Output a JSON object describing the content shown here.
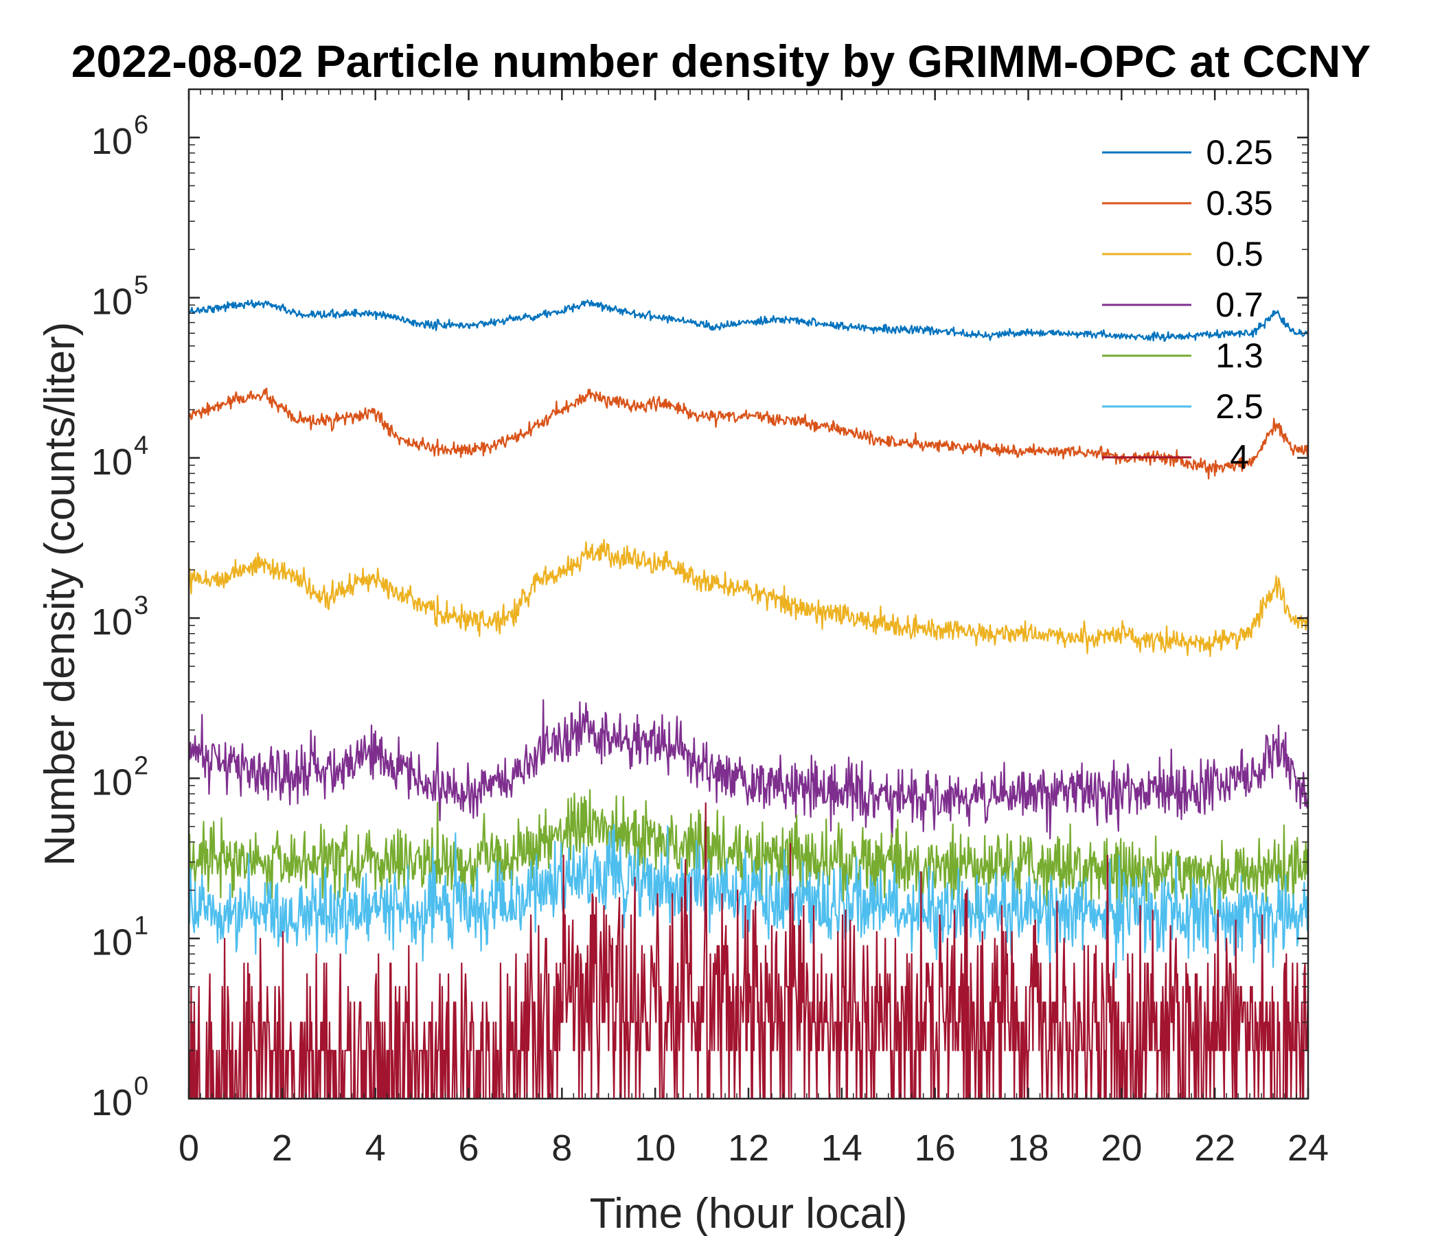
{
  "chart_data": {
    "type": "line",
    "title": "2022-08-02 Particle number density by GRIMM-OPC at CCNY",
    "xlabel": "Time (hour local)",
    "ylabel": "Number density (counts/liter)",
    "xlim": [
      0,
      24
    ],
    "ylim": [
      1,
      2000000
    ],
    "yscale": "log",
    "xticks": [
      "0",
      "2",
      "4",
      "6",
      "8",
      "10",
      "12",
      "14",
      "16",
      "18",
      "20",
      "22",
      "24"
    ],
    "yticks": [
      {
        "base": "10",
        "exp": "0"
      },
      {
        "base": "10",
        "exp": "1"
      },
      {
        "base": "10",
        "exp": "2"
      },
      {
        "base": "10",
        "exp": "3"
      },
      {
        "base": "10",
        "exp": "4"
      },
      {
        "base": "10",
        "exp": "5"
      },
      {
        "base": "10",
        "exp": "6"
      }
    ],
    "legend_location": "top-right",
    "series": [
      {
        "name": "0.25",
        "color": "#0072BD",
        "noise": 0.025,
        "x": [
          0,
          1,
          1.7,
          2.5,
          3.5,
          4.2,
          5,
          6,
          7,
          8,
          8.6,
          9.5,
          10.5,
          11.3,
          12,
          13,
          14,
          15,
          16,
          17,
          18,
          19,
          20,
          21,
          22,
          22.8,
          23.3,
          23.7,
          24
        ],
        "y": [
          82000,
          90000,
          92000,
          76000,
          80000,
          78000,
          68000,
          67000,
          74000,
          82000,
          93000,
          80000,
          73000,
          66000,
          70000,
          73000,
          66000,
          64000,
          62000,
          59000,
          60000,
          60000,
          57000,
          57000,
          59000,
          60000,
          80000,
          60000,
          60000
        ]
      },
      {
        "name": "0.35",
        "color": "#D95319",
        "noise": 0.04,
        "x": [
          0,
          1,
          1.6,
          2.3,
          3,
          4,
          4.5,
          5.2,
          6,
          7,
          8,
          8.6,
          9.5,
          10.2,
          11,
          12,
          13,
          14,
          15,
          16,
          17,
          18,
          19,
          20,
          21,
          22,
          22.8,
          23.3,
          23.7,
          24
        ],
        "y": [
          18000,
          23000,
          25000,
          17000,
          17000,
          19000,
          13000,
          11500,
          11000,
          13000,
          20000,
          25000,
          21000,
          22000,
          18000,
          18500,
          17000,
          15000,
          12500,
          12000,
          11500,
          11000,
          11000,
          10000,
          10000,
          8500,
          9500,
          16000,
          11000,
          11000
        ]
      },
      {
        "name": "0.5",
        "color": "#EDB120",
        "noise": 0.07,
        "x": [
          0,
          0.5,
          1.5,
          2.3,
          2.8,
          3.5,
          4,
          4.5,
          5.2,
          6,
          6.5,
          7,
          7.5,
          8,
          8.7,
          9.5,
          10.2,
          11,
          12,
          13,
          14,
          15,
          16,
          17,
          18,
          19,
          20,
          21,
          22,
          22.8,
          23.3,
          23.7,
          24
        ],
        "y": [
          1900,
          1700,
          2200,
          1800,
          1300,
          1600,
          1800,
          1500,
          1100,
          950,
          950,
          1100,
          1700,
          2000,
          2600,
          2300,
          2200,
          1700,
          1500,
          1200,
          1050,
          900,
          850,
          800,
          800,
          750,
          800,
          700,
          700,
          850,
          1700,
          950,
          950
        ]
      },
      {
        "name": "0.7",
        "color": "#7E2F8E",
        "noise": 0.17,
        "x": [
          0,
          1,
          2,
          3,
          4,
          5,
          6,
          7,
          7.5,
          8,
          8.5,
          9,
          9.5,
          10,
          11,
          12,
          13,
          14,
          15,
          16,
          17,
          18,
          19,
          20,
          21,
          22,
          23,
          23.3,
          23.7,
          24
        ],
        "y": [
          150,
          120,
          100,
          120,
          150,
          90,
          80,
          100,
          150,
          170,
          210,
          180,
          160,
          180,
          120,
          90,
          90,
          85,
          75,
          75,
          80,
          80,
          85,
          80,
          80,
          90,
          110,
          160,
          110,
          70
        ]
      },
      {
        "name": "1.3",
        "color": "#77AC30",
        "noise": 0.2,
        "x": [
          0,
          2,
          4,
          6,
          7,
          8,
          8.7,
          9.5,
          10.5,
          12,
          14,
          16,
          18,
          20,
          22,
          24
        ],
        "y": [
          30,
          30,
          30,
          28,
          33,
          45,
          58,
          45,
          40,
          33,
          30,
          28,
          28,
          27,
          25,
          25
        ]
      },
      {
        "name": "2.5",
        "color": "#4DBEEE",
        "noise": 0.24,
        "x": [
          0,
          2,
          4,
          6,
          7,
          8,
          9,
          10,
          12,
          14,
          16,
          18,
          20,
          22,
          24
        ],
        "y": [
          15,
          15,
          15,
          15,
          17,
          23,
          25,
          22,
          18,
          16,
          15,
          15,
          15,
          14,
          14
        ]
      },
      {
        "name": "4",
        "color": "#A2142F",
        "noise": 0.5,
        "floor": 1,
        "x": [
          0,
          2,
          4,
          6,
          7,
          7.9,
          8,
          10,
          12,
          14,
          16,
          18,
          20,
          22,
          24
        ],
        "y": [
          1.4,
          1.6,
          1.8,
          1.5,
          2.0,
          2.3,
          5,
          4,
          3.2,
          3,
          2.8,
          2.8,
          2.5,
          2.5,
          2.3
        ]
      }
    ]
  }
}
